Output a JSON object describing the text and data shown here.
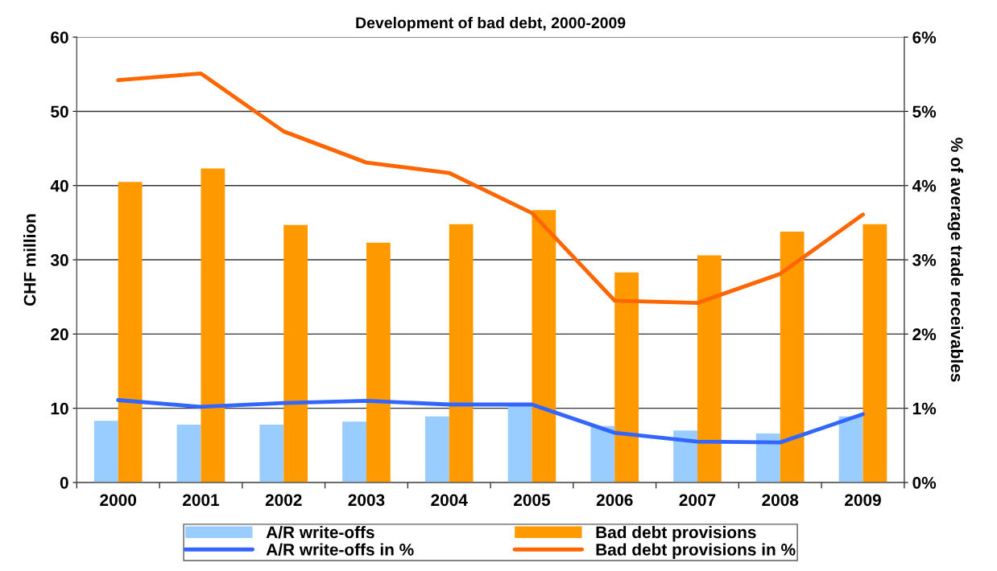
{
  "chart_data": {
    "type": "bar",
    "title": "Development of bad debt, 2000-2009",
    "ylabel": "CHF million",
    "y2label": "% of average trade receivables",
    "categories": [
      "2000",
      "2001",
      "2002",
      "2003",
      "2004",
      "2005",
      "2006",
      "2007",
      "2008",
      "2009"
    ],
    "series": [
      {
        "name": "A/R write-offs",
        "color": "#99ccff",
        "values": [
          8.3,
          7.8,
          7.8,
          8.2,
          8.9,
          10.3,
          7.6,
          7.0,
          6.6,
          8.9
        ]
      },
      {
        "name": "Bad debt provisions",
        "color": "#ff9900",
        "values": [
          40.5,
          42.3,
          34.7,
          32.3,
          34.8,
          36.7,
          28.3,
          30.6,
          33.8,
          34.8
        ]
      },
      {
        "name": "A/R write-offs in %",
        "type": "line",
        "axis": "y2",
        "color": "#3366ff",
        "values": [
          1.11,
          1.02,
          1.07,
          1.1,
          1.05,
          1.05,
          0.67,
          0.55,
          0.54,
          0.92
        ]
      },
      {
        "name": "Bad debt provisions in %",
        "type": "line",
        "axis": "y2",
        "color": "#ff6600",
        "values": [
          5.42,
          5.51,
          4.73,
          4.31,
          4.17,
          3.63,
          2.45,
          2.42,
          2.81,
          3.61
        ]
      }
    ],
    "ylim": [
      0,
      60
    ],
    "yticks": [
      0,
      10,
      20,
      30,
      40,
      50,
      60
    ],
    "y2lim": [
      0,
      6
    ],
    "y2ticks": [
      {
        "value": 0,
        "label": "0%"
      },
      {
        "value": 1,
        "label": "1%"
      },
      {
        "value": 2,
        "label": "2%"
      },
      {
        "value": 3,
        "label": "3%"
      },
      {
        "value": 4,
        "label": "4%"
      },
      {
        "value": 5,
        "label": "5%"
      },
      {
        "value": 6,
        "label": "6%"
      }
    ],
    "grid": "y",
    "legend": "bottom",
    "marker": "none",
    "line_style": "solid"
  }
}
